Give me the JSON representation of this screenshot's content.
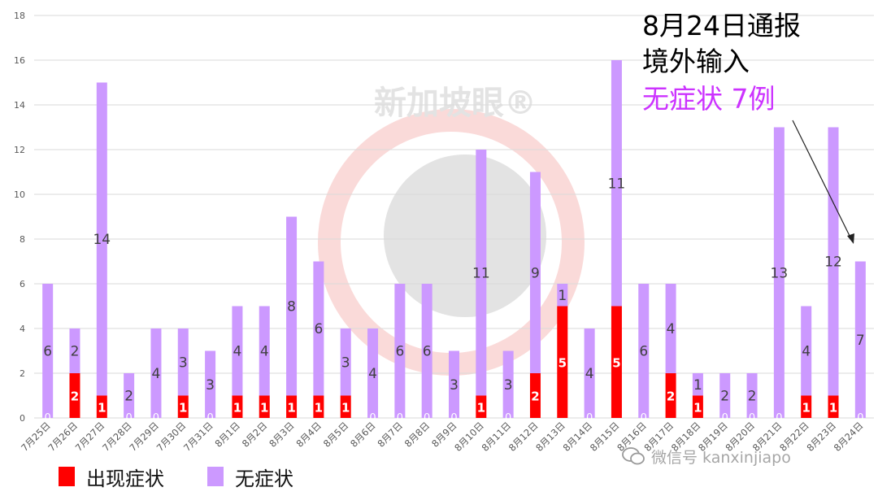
{
  "chart_data": {
    "type": "bar",
    "stacked": true,
    "title": "",
    "xlabel": "",
    "ylabel": "",
    "ylim": [
      0,
      18
    ],
    "yticks": [
      0,
      2,
      4,
      6,
      8,
      10,
      12,
      14,
      16,
      18
    ],
    "grid": true,
    "categories": [
      "7月25日",
      "7月26日",
      "7月27日",
      "7月28日",
      "7月29日",
      "7月30日",
      "7月31日",
      "8月1日",
      "8月2日",
      "8月3日",
      "8月4日",
      "8月5日",
      "8月6日",
      "8月7日",
      "8月8日",
      "8月9日",
      "8月10日",
      "8月11日",
      "8月12日",
      "8月13日",
      "8月14日",
      "8月15日",
      "8月16日",
      "8月17日",
      "8月18日",
      "8月19日",
      "8月20日",
      "8月21日",
      "8月22日",
      "8月23日",
      "8月24日"
    ],
    "series": [
      {
        "name": "出现症状",
        "color": "#ff0000",
        "values": [
          0,
          2,
          1,
          0,
          0,
          1,
          0,
          1,
          1,
          1,
          1,
          1,
          0,
          0,
          0,
          0,
          1,
          0,
          2,
          5,
          0,
          5,
          0,
          2,
          1,
          0,
          0,
          0,
          1,
          1,
          0
        ]
      },
      {
        "name": "无症状",
        "color": "#cc99ff",
        "values": [
          6,
          2,
          14,
          2,
          4,
          3,
          3,
          4,
          4,
          8,
          6,
          3,
          4,
          6,
          6,
          3,
          11,
          3,
          9,
          1,
          4,
          11,
          6,
          4,
          1,
          2,
          2,
          13,
          4,
          12,
          7
        ]
      }
    ],
    "legend_position": "bottom-left"
  },
  "annotation": {
    "line1": "8月24日通报",
    "line2": "境外输入",
    "line3": "无症状 7例"
  },
  "watermark": {
    "text": "微信号 kanxinjiapo",
    "brand": "新加坡眼®"
  },
  "colors": {
    "symptomatic": "#ff0000",
    "asymptomatic": "#cc99ff",
    "annotation_highlight": "#cc33ff",
    "grid": "#d9d9d9",
    "axis_text": "#595959"
  }
}
